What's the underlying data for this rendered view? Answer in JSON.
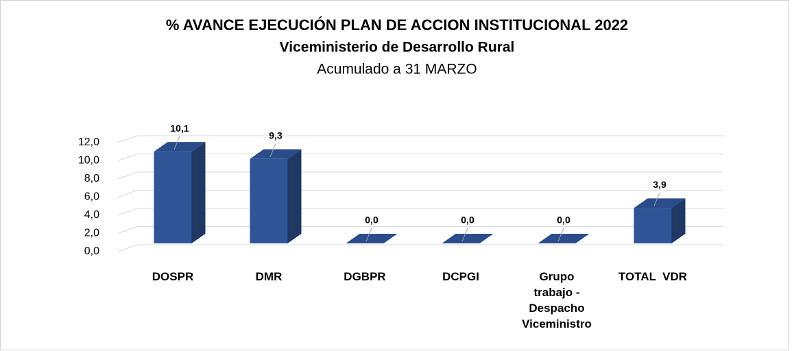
{
  "chart_data": {
    "type": "bar3d",
    "title": "% AVANCE EJECUCIÓN PLAN DE ACCION INSTITUCIONAL 2022",
    "subtitle": "Viceministerio de Desarrollo Rural",
    "subtitle2": "Acumulado a 31 MARZO",
    "categories": [
      "DOSPR",
      "DMR",
      "DGBPR",
      "DCPGI",
      "Grupo trabajo - Despacho Viceministro",
      "TOTAL  VDR"
    ],
    "values": [
      10.1,
      9.3,
      0,
      0,
      0,
      3.9
    ],
    "value_labels": [
      "10,1",
      "9,3",
      "0,0",
      "0,0",
      "0,0",
      "3,9"
    ],
    "color": "#2f5597",
    "ylim": [
      0,
      12
    ],
    "yticks": [
      {
        "value": 0,
        "label": "0,0"
      },
      {
        "value": 2,
        "label": "2,0"
      },
      {
        "value": 4,
        "label": "4,0"
      },
      {
        "value": 6,
        "label": "6,0"
      },
      {
        "value": 8,
        "label": "8,0"
      },
      {
        "value": 10,
        "label": "10,0"
      },
      {
        "value": 12,
        "label": "12,0"
      }
    ],
    "grid": true
  }
}
